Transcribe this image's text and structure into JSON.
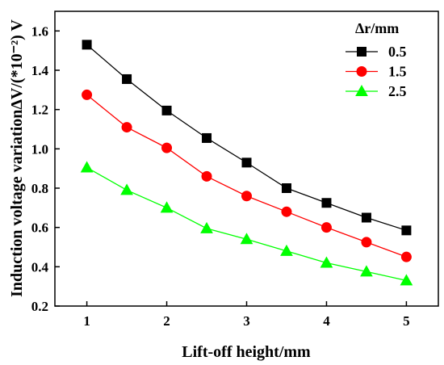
{
  "chart_data": {
    "type": "line",
    "xlabel": "Lift-off height/mm",
    "ylabel": "Induction voltage variationΔV/(*10⁻²) V",
    "xlim": [
      0.6,
      5.4
    ],
    "ylim": [
      0.2,
      1.7
    ],
    "xticks": [
      "1",
      "2",
      "3",
      "4",
      "5"
    ],
    "yticks": [
      "0.2",
      "0.4",
      "0.6",
      "0.8",
      "1.0",
      "1.2",
      "1.4",
      "1.6"
    ],
    "legend_title": "Δr/mm",
    "legend_position": "top-right",
    "x": [
      1,
      1.5,
      2,
      2.5,
      3,
      3.5,
      4,
      4.5,
      5
    ],
    "series": [
      {
        "name": "0.5",
        "color": "#000000",
        "marker": "square",
        "values": [
          1.53,
          1.355,
          1.195,
          1.055,
          0.93,
          0.8,
          0.725,
          0.65,
          0.585
        ]
      },
      {
        "name": "1.5",
        "color": "#ff0000",
        "marker": "circle",
        "values": [
          1.275,
          1.11,
          1.005,
          0.86,
          0.76,
          0.68,
          0.6,
          0.525,
          0.45
        ]
      },
      {
        "name": "2.5",
        "color": "#00ff00",
        "marker": "triangle",
        "values": [
          0.905,
          0.79,
          0.7,
          0.595,
          0.54,
          0.48,
          0.42,
          0.375,
          0.33
        ]
      }
    ]
  }
}
